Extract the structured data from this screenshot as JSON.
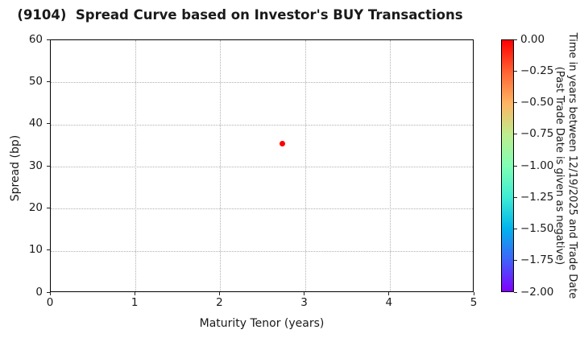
{
  "title": "(9104)  Spread Curve based on Investor's BUY Transactions",
  "chart_data": {
    "type": "scatter",
    "title": "(9104)  Spread Curve based on Investor's BUY Transactions",
    "xlabel": "Maturity Tenor (years)",
    "ylabel": "Spread (bp)",
    "xlim": [
      0,
      5
    ],
    "ylim": [
      0,
      60
    ],
    "xticks": [
      0,
      1,
      2,
      3,
      4,
      5
    ],
    "yticks": [
      0,
      10,
      20,
      30,
      40,
      50,
      60
    ],
    "grid": "dotted",
    "legend": "none",
    "points": [
      {
        "x": 2.73,
        "y": 35.5,
        "color_value": 0.0,
        "color": "#ff0000"
      }
    ],
    "colorbar": {
      "label_line1": "Time in years between 12/19/2025 and Trade Date",
      "label_line2": "(Past Trade Date is given as negative)",
      "tick_labels": [
        "0.00",
        "−0.25",
        "−0.50",
        "−0.75",
        "−1.00",
        "−1.25",
        "−1.50",
        "−1.75",
        "−2.00"
      ],
      "range": [
        0.0,
        -2.0
      ],
      "colormap": "rainbow-reversed",
      "gradient_stops": [
        "#ff0000",
        "#ff6232",
        "#ffb462",
        "#bfec8e",
        "#80ffb4",
        "#40ecd4",
        "#00b4ec",
        "#4062fa",
        "#8000ff"
      ]
    },
    "colors": {
      "point": "#ff0000",
      "grid": "#b0b0b0",
      "axis": "#000000",
      "text": "#1a1a1a",
      "background": "#ffffff"
    }
  }
}
